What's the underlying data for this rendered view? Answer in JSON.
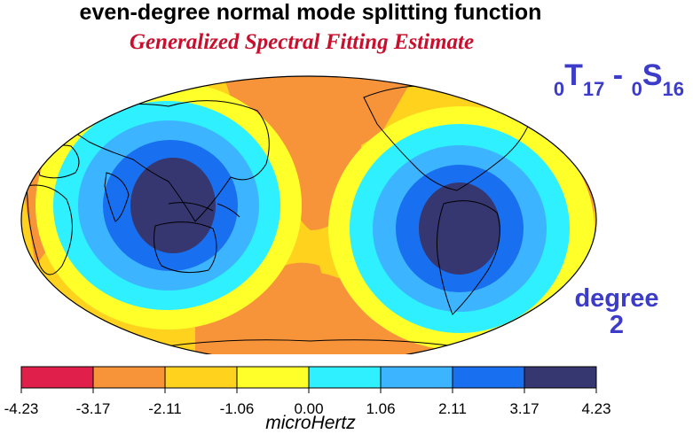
{
  "title": "even-degree normal mode splitting function",
  "subtitle": "Generalized Spectral Fitting Estimate",
  "mode": {
    "t_prefix": "0",
    "t_letter": "T",
    "t_index": "17",
    "separator": " - ",
    "s_prefix": "0",
    "s_letter": "S",
    "s_index": "16"
  },
  "degree": {
    "line1": "degree",
    "line2": "2"
  },
  "colorbar": {
    "unit": "microHertz",
    "ticks": [
      "-4.23",
      "-3.17",
      "-2.11",
      "-1.06",
      "0.00",
      "1.06",
      "2.11",
      "3.17",
      "4.23"
    ],
    "colors": [
      "#e0204a",
      "#f7943a",
      "#ffd21e",
      "#ffff2a",
      "#2ef0ff",
      "#3cb4ff",
      "#1870f0",
      "#363670"
    ]
  },
  "map_colors": {
    "neg_strong": "#f7943a",
    "neg_weak": "#ffd21e",
    "near_zero": "#ffff2a",
    "pos_1": "#2ef0ff",
    "pos_2": "#3cb4ff",
    "pos_3": "#1870f0",
    "pos_4": "#363670"
  }
}
